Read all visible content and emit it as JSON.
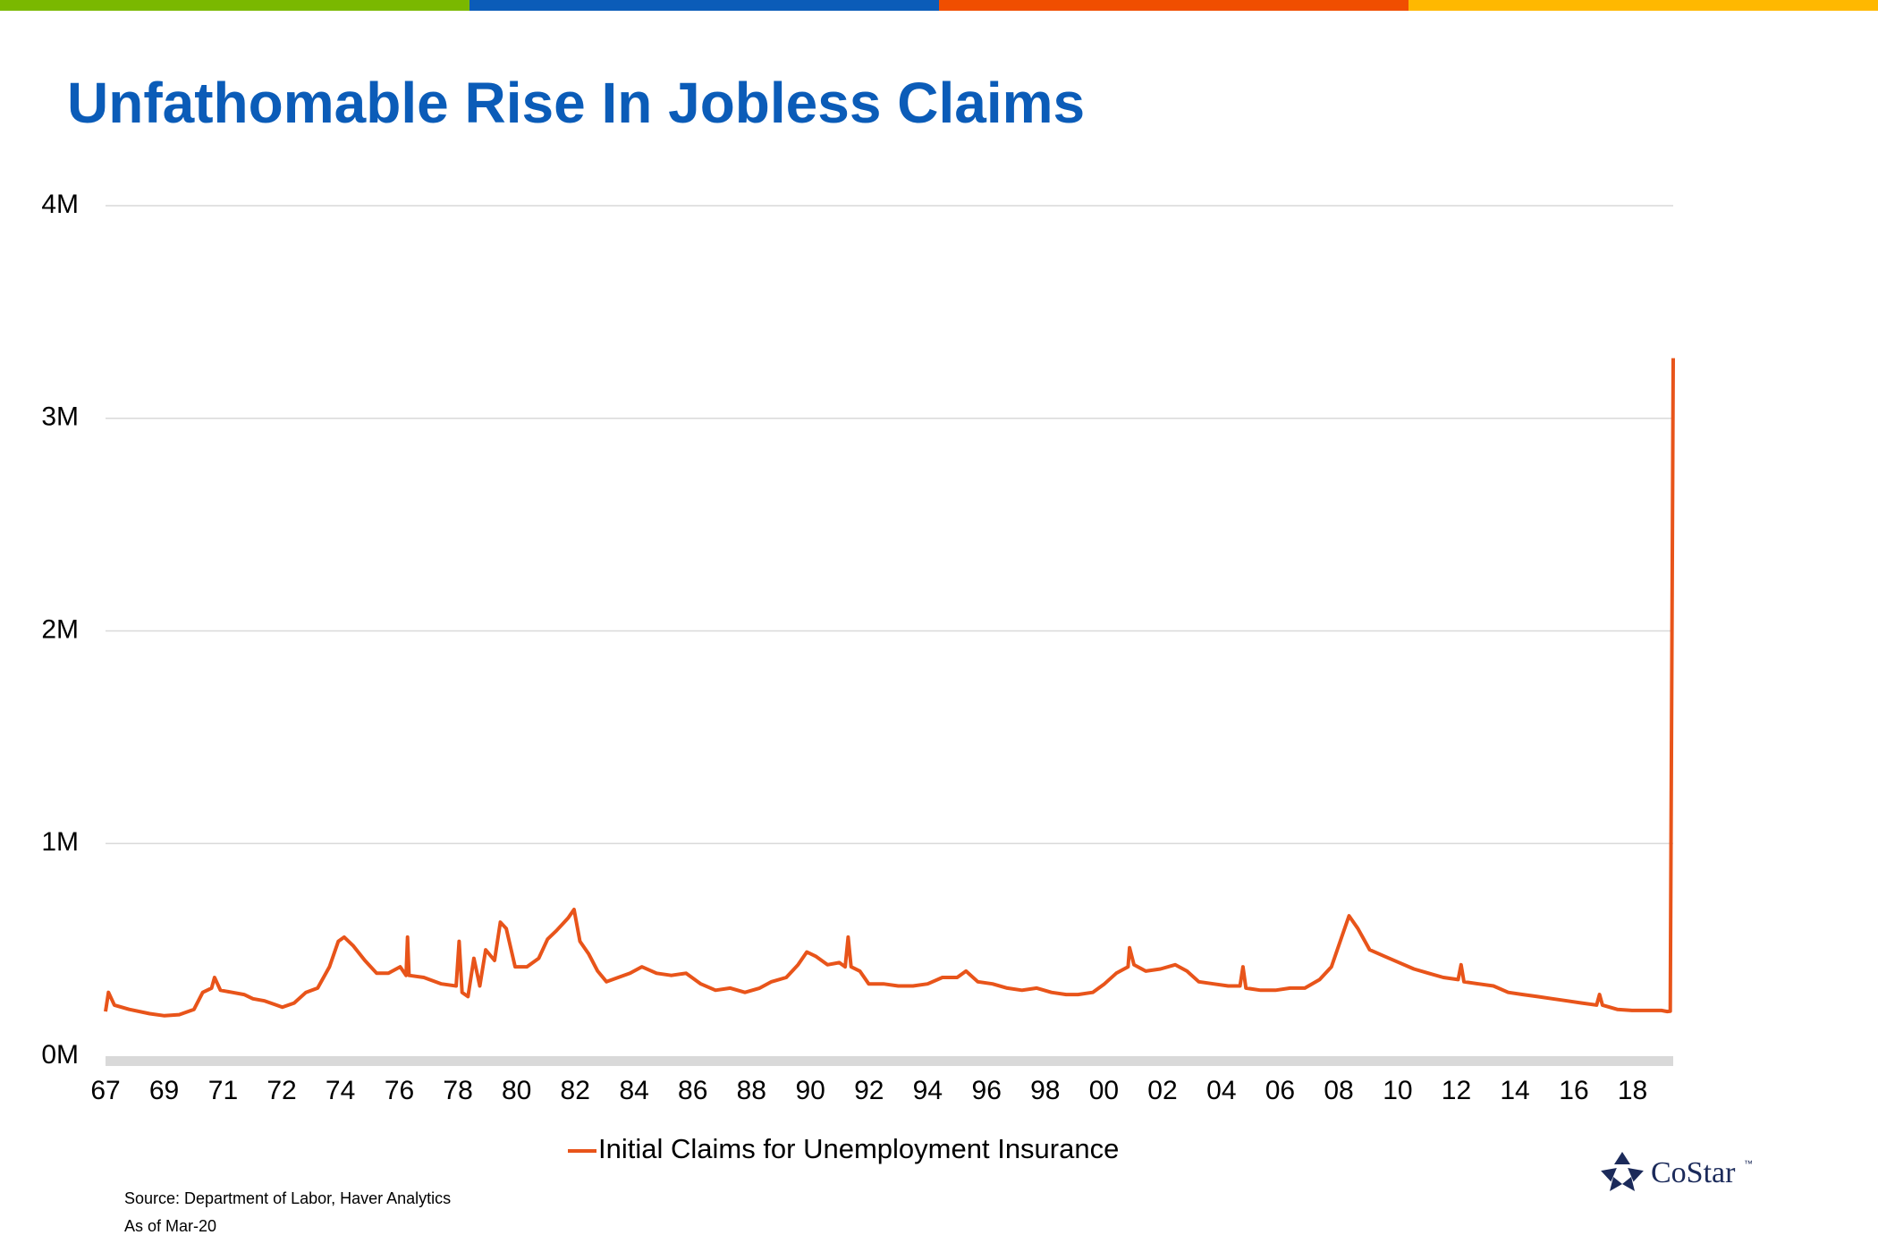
{
  "chart_data": {
    "type": "line",
    "title": "Unfathomable Rise In Jobless Claims",
    "source": "Source: Department of Labor, Haver Analytics",
    "note": "As of Mar-20",
    "logo": "CoStar",
    "logo_mark": "™",
    "x": [
      1967.0,
      1967.1,
      1967.3,
      1967.8,
      1968.5,
      1969.0,
      1969.5,
      1970.0,
      1970.3,
      1970.6,
      1970.7,
      1970.9,
      1971.3,
      1971.7,
      1972.0,
      1972.4,
      1972.8,
      1973.0,
      1973.4,
      1973.8,
      1974.2,
      1974.6,
      1974.9,
      1975.1,
      1975.4,
      1975.8,
      1976.2,
      1976.6,
      1977.0,
      1977.2,
      1977.25,
      1977.3,
      1977.8,
      1978.4,
      1978.9,
      1979.0,
      1979.1,
      1979.3,
      1979.5,
      1979.7,
      1979.9,
      1980.2,
      1980.4,
      1980.6,
      1980.9,
      1981.3,
      1981.7,
      1982.0,
      1982.3,
      1982.7,
      1982.9,
      1983.1,
      1983.4,
      1983.7,
      1984.0,
      1984.4,
      1984.8,
      1985.2,
      1985.7,
      1986.2,
      1986.7,
      1987.2,
      1987.7,
      1988.2,
      1988.7,
      1989.2,
      1989.6,
      1990.1,
      1990.5,
      1990.8,
      1991.1,
      1991.5,
      1991.9,
      1992.1,
      1992.2,
      1992.3,
      1992.6,
      1992.9,
      1993.4,
      1993.9,
      1994.4,
      1994.9,
      1995.4,
      1995.9,
      1996.2,
      1996.6,
      1997.1,
      1997.6,
      1998.1,
      1998.6,
      1999.1,
      1999.6,
      2000.0,
      2000.5,
      2000.9,
      2001.3,
      2001.7,
      2001.75,
      2001.9,
      2002.3,
      2002.8,
      2003.3,
      2003.7,
      2004.1,
      2004.6,
      2005.1,
      2005.5,
      2005.6,
      2005.7,
      2006.2,
      2006.7,
      2007.2,
      2007.7,
      2008.2,
      2008.6,
      2009.0,
      2009.2,
      2009.5,
      2009.9,
      2010.4,
      2010.9,
      2011.4,
      2011.9,
      2012.4,
      2012.9,
      2013.0,
      2013.1,
      2013.6,
      2014.1,
      2014.6,
      2015.1,
      2015.6,
      2016.1,
      2016.6,
      2017.1,
      2017.6,
      2017.7,
      2017.8,
      2018.3,
      2018.8,
      2019.3,
      2019.8,
      2020.0,
      2020.1,
      2020.2
    ],
    "series": [
      {
        "name": "Initial Claims for Unemployment Insurance",
        "color": "#e8541a",
        "values": [
          210000,
          300000,
          240000,
          220000,
          200000,
          190000,
          195000,
          220000,
          300000,
          320000,
          370000,
          310000,
          300000,
          290000,
          270000,
          260000,
          240000,
          230000,
          250000,
          300000,
          320000,
          420000,
          540000,
          560000,
          520000,
          450000,
          390000,
          390000,
          420000,
          380000,
          560000,
          380000,
          370000,
          340000,
          330000,
          540000,
          300000,
          280000,
          460000,
          330000,
          500000,
          450000,
          630000,
          600000,
          420000,
          420000,
          460000,
          550000,
          590000,
          650000,
          690000,
          540000,
          480000,
          400000,
          350000,
          370000,
          390000,
          420000,
          390000,
          380000,
          390000,
          340000,
          310000,
          320000,
          300000,
          320000,
          350000,
          370000,
          430000,
          490000,
          470000,
          430000,
          440000,
          420000,
          560000,
          420000,
          400000,
          340000,
          340000,
          330000,
          330000,
          340000,
          370000,
          370000,
          400000,
          350000,
          340000,
          320000,
          310000,
          320000,
          300000,
          290000,
          290000,
          300000,
          340000,
          390000,
          420000,
          510000,
          430000,
          400000,
          410000,
          430000,
          400000,
          350000,
          340000,
          330000,
          330000,
          420000,
          320000,
          310000,
          310000,
          320000,
          320000,
          360000,
          420000,
          580000,
          660000,
          600000,
          500000,
          470000,
          440000,
          410000,
          390000,
          370000,
          360000,
          430000,
          350000,
          340000,
          330000,
          300000,
          290000,
          280000,
          270000,
          260000,
          250000,
          240000,
          290000,
          240000,
          220000,
          215000,
          215000,
          215000,
          210000,
          211000,
          3283000
        ]
      }
    ],
    "xlim": [
      1967,
      2020.2
    ],
    "xticks": [
      {
        "value": 1967,
        "label": "67"
      },
      {
        "value": 1968.99,
        "label": "69"
      },
      {
        "value": 1970.99,
        "label": "71"
      },
      {
        "value": 1972.98,
        "label": "72"
      },
      {
        "value": 1974.97,
        "label": "74"
      },
      {
        "value": 1976.97,
        "label": "76"
      },
      {
        "value": 1978.96,
        "label": "78"
      },
      {
        "value": 1980.95,
        "label": "80"
      },
      {
        "value": 1982.94,
        "label": "82"
      },
      {
        "value": 1984.94,
        "label": "84"
      },
      {
        "value": 1986.93,
        "label": "86"
      },
      {
        "value": 1988.92,
        "label": "88"
      },
      {
        "value": 1990.92,
        "label": "90"
      },
      {
        "value": 1992.91,
        "label": "92"
      },
      {
        "value": 1994.9,
        "label": "94"
      },
      {
        "value": 1996.9,
        "label": "96"
      },
      {
        "value": 1998.89,
        "label": "98"
      },
      {
        "value": 2000.88,
        "label": "00"
      },
      {
        "value": 2002.87,
        "label": "02"
      },
      {
        "value": 2004.87,
        "label": "04"
      },
      {
        "value": 2006.86,
        "label": "06"
      },
      {
        "value": 2008.85,
        "label": "08"
      },
      {
        "value": 2010.85,
        "label": "10"
      },
      {
        "value": 2012.84,
        "label": "12"
      },
      {
        "value": 2014.83,
        "label": "14"
      },
      {
        "value": 2016.83,
        "label": "16"
      },
      {
        "value": 2018.82,
        "label": "18"
      }
    ],
    "ylim": [
      0,
      4000000
    ],
    "yticks": [
      {
        "value": 0,
        "label": "0M"
      },
      {
        "value": 1000000,
        "label": "1M"
      },
      {
        "value": 2000000,
        "label": "2M"
      },
      {
        "value": 3000000,
        "label": "3M"
      },
      {
        "value": 4000000,
        "label": "4M"
      }
    ],
    "grid": true
  }
}
